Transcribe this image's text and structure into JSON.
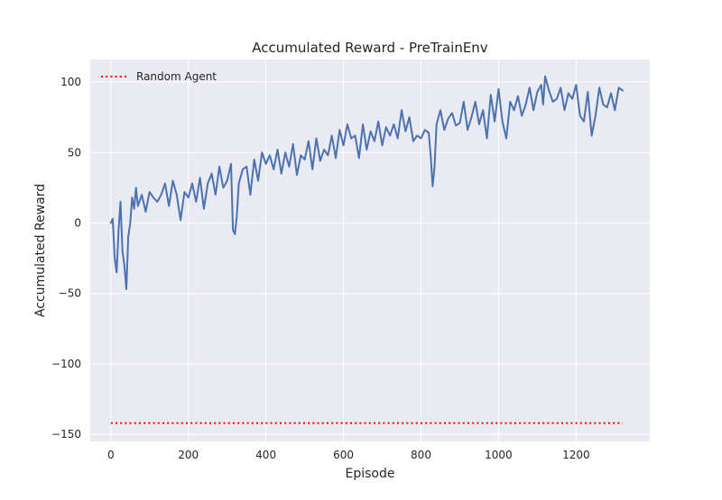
{
  "chart_data": {
    "type": "line",
    "title": "Accumulated Reward - PreTrainEnv",
    "xlabel": "Episode",
    "ylabel": "Accumulated Reward",
    "xlim": [
      -53,
      1390
    ],
    "ylim": [
      -155,
      116
    ],
    "xticks": [
      0,
      200,
      400,
      600,
      800,
      1000,
      1200
    ],
    "yticks": [
      -150,
      -100,
      -50,
      0,
      50,
      100
    ],
    "grid": true,
    "legend_position": "top-left",
    "colors": {
      "background": "#EAEAF2",
      "grid": "#FFFFFF",
      "series": "#4C72B0",
      "baseline": "#FF0000"
    },
    "series": [
      {
        "name": "",
        "style": "solid",
        "x": [
          0,
          5,
          10,
          15,
          20,
          25,
          30,
          35,
          40,
          45,
          50,
          55,
          60,
          65,
          70,
          80,
          90,
          100,
          110,
          120,
          130,
          140,
          150,
          160,
          170,
          180,
          190,
          200,
          210,
          220,
          230,
          240,
          250,
          260,
          270,
          280,
          290,
          300,
          310,
          315,
          320,
          325,
          330,
          340,
          350,
          360,
          370,
          380,
          390,
          400,
          410,
          420,
          430,
          440,
          450,
          460,
          470,
          480,
          490,
          500,
          510,
          520,
          530,
          540,
          550,
          560,
          570,
          580,
          590,
          600,
          610,
          620,
          630,
          640,
          650,
          660,
          670,
          680,
          690,
          700,
          710,
          720,
          730,
          740,
          750,
          760,
          770,
          780,
          790,
          800,
          810,
          820,
          825,
          830,
          835,
          840,
          850,
          860,
          870,
          880,
          890,
          900,
          910,
          920,
          930,
          940,
          950,
          960,
          970,
          980,
          990,
          1000,
          1010,
          1020,
          1030,
          1040,
          1050,
          1060,
          1070,
          1080,
          1090,
          1100,
          1110,
          1115,
          1120,
          1130,
          1140,
          1150,
          1160,
          1170,
          1180,
          1190,
          1200,
          1210,
          1220,
          1230,
          1240,
          1250,
          1260,
          1270,
          1280,
          1290,
          1300,
          1310,
          1320
        ],
        "values": [
          0,
          3,
          -25,
          -35,
          -5,
          15,
          -20,
          -30,
          -47,
          -10,
          0,
          18,
          10,
          25,
          12,
          20,
          8,
          22,
          18,
          15,
          20,
          28,
          12,
          30,
          20,
          2,
          22,
          18,
          28,
          15,
          32,
          10,
          28,
          35,
          20,
          40,
          25,
          30,
          42,
          -5,
          -8,
          5,
          28,
          38,
          40,
          20,
          45,
          30,
          50,
          42,
          48,
          38,
          52,
          35,
          50,
          40,
          56,
          34,
          48,
          45,
          58,
          38,
          60,
          44,
          52,
          48,
          62,
          46,
          66,
          55,
          70,
          60,
          62,
          46,
          70,
          52,
          65,
          58,
          72,
          55,
          68,
          62,
          70,
          60,
          80,
          65,
          75,
          58,
          62,
          60,
          66,
          64,
          48,
          26,
          40,
          70,
          80,
          66,
          74,
          78,
          69,
          71,
          86,
          66,
          75,
          86,
          70,
          80,
          60,
          91,
          72,
          95,
          72,
          60,
          86,
          80,
          90,
          76,
          84,
          96,
          80,
          93,
          98,
          84,
          104,
          94,
          86,
          88,
          96,
          80,
          92,
          88,
          98,
          76,
          72,
          93,
          62,
          76,
          96,
          84,
          82,
          92,
          80,
          96,
          94
        ]
      }
    ],
    "baseline": {
      "name": "Random Agent",
      "style": "dotted",
      "y": -142,
      "x": [
        0,
        1320
      ]
    }
  }
}
